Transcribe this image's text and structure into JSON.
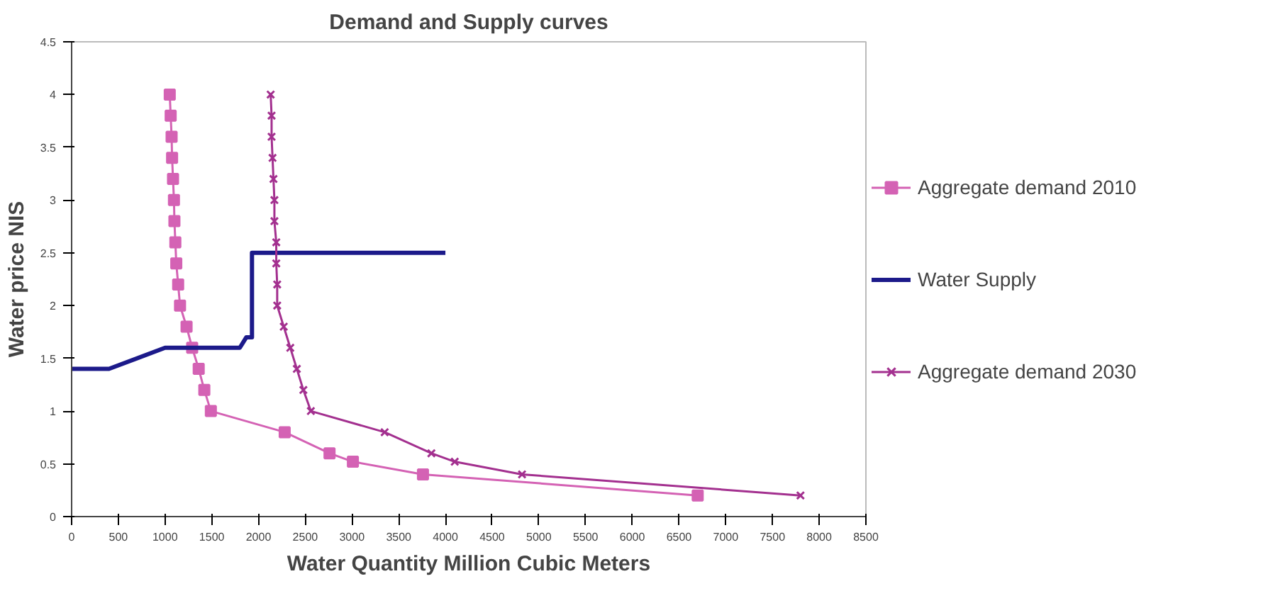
{
  "chart_data": {
    "type": "line",
    "title": "Demand and Supply curves",
    "xlabel": "Water Quantity Million Cubic Meters",
    "ylabel": "Water price NIS",
    "xlim": [
      0,
      8500
    ],
    "xticks": [
      0,
      500,
      1000,
      1500,
      2000,
      2500,
      3000,
      3500,
      4000,
      4500,
      5000,
      5500,
      6000,
      6500,
      7000,
      7500,
      8000,
      8500
    ],
    "ylim": [
      0,
      4.5
    ],
    "yticks": [
      0,
      0.5,
      1,
      1.5,
      2,
      2.5,
      3,
      3.5,
      4,
      4.5
    ],
    "grid": false,
    "legend": "right",
    "series": [
      {
        "name": "Aggregate demand 2010",
        "color": "#d462b4",
        "marker": "square",
        "x": [
          1050,
          1060,
          1070,
          1075,
          1085,
          1095,
          1100,
          1110,
          1120,
          1140,
          1160,
          1230,
          1290,
          1360,
          1420,
          1490,
          2280,
          2760,
          3010,
          3760,
          6700
        ],
        "values": [
          4,
          3.8,
          3.6,
          3.4,
          3.2,
          3.0,
          2.8,
          2.6,
          2.4,
          2.2,
          2.0,
          1.8,
          1.6,
          1.4,
          1.2,
          1.0,
          0.8,
          0.6,
          0.52,
          0.4,
          0.2
        ]
      },
      {
        "name": "Water Supply",
        "color": "#1c1a8a",
        "marker": "none",
        "x": [
          0,
          400,
          1000,
          1800,
          1870,
          1930,
          1930,
          4000
        ],
        "values": [
          1.4,
          1.4,
          1.6,
          1.6,
          1.7,
          1.7,
          2.5,
          2.5
        ]
      },
      {
        "name": "Aggregate demand 2030",
        "color": "#a3308f",
        "marker": "cross",
        "x": [
          2130,
          2140,
          2140,
          2150,
          2160,
          2170,
          2170,
          2190,
          2190,
          2200,
          2200,
          2270,
          2340,
          2410,
          2480,
          2560,
          3350,
          3850,
          4100,
          4820,
          7800
        ],
        "values": [
          4,
          3.8,
          3.6,
          3.4,
          3.2,
          3.0,
          2.8,
          2.6,
          2.4,
          2.2,
          2.0,
          1.8,
          1.6,
          1.4,
          1.2,
          1.0,
          0.8,
          0.6,
          0.52,
          0.4,
          0.2
        ]
      }
    ]
  }
}
